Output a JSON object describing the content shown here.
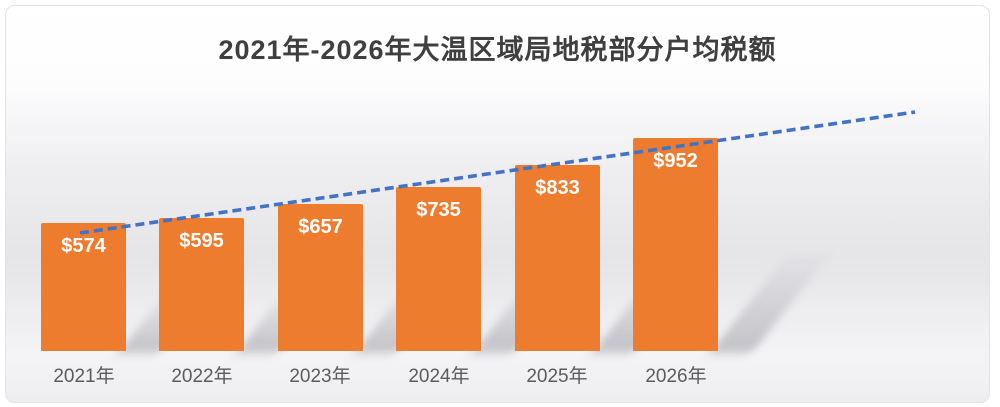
{
  "title": "2021年-2026年大温区域局地税部分户均税额",
  "chart_data": {
    "type": "bar",
    "title": "2021年-2026年大温区域局地税部分户均税额",
    "categories": [
      "2021年",
      "2022年",
      "2023年",
      "2024年",
      "2025年",
      "2026年"
    ],
    "values": [
      574,
      595,
      657,
      735,
      833,
      952
    ],
    "value_labels": [
      "$574",
      "$595",
      "$657",
      "$735",
      "$833",
      "$952"
    ],
    "xlabel": "",
    "ylabel": "",
    "ylim": [
      0,
      1000
    ],
    "grid": false,
    "legend": false,
    "bar_color": "#ED7C2F",
    "value_label_color": "#FFFFFF",
    "axis_label_color": "#5B5B5B",
    "title_color": "#3F3F3F",
    "trendline": {
      "type": "linear",
      "style": "dashed",
      "color": "#4472C4"
    }
  }
}
